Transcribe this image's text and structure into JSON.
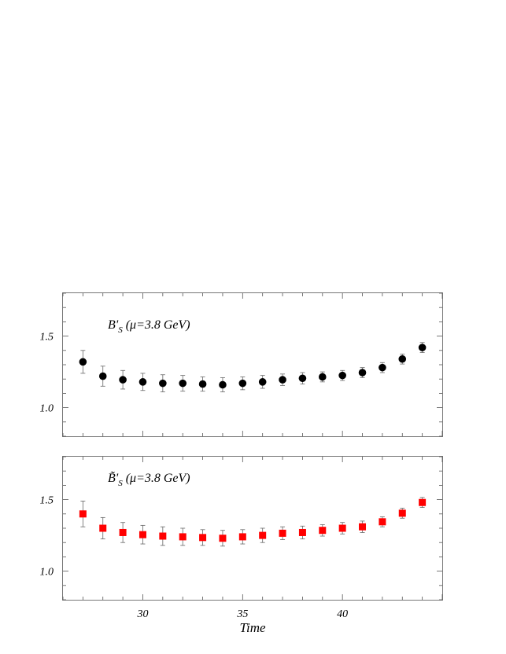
{
  "chart_data": [
    {
      "type": "scatter",
      "label_main": "B",
      "label_prime": "'",
      "label_sub": "S",
      "label_suffix": " (μ=3.8 GeV)",
      "marker": "circle",
      "color": "#000000",
      "xlim": [
        26,
        45
      ],
      "ylim": [
        0.8,
        1.8
      ],
      "yticks": [
        "1.0",
        "1.5"
      ],
      "ytick_values": [
        1.0,
        1.5
      ],
      "x": [
        27,
        28,
        29,
        30,
        31,
        32,
        33,
        34,
        35,
        36,
        37,
        38,
        39,
        40,
        41,
        42,
        43,
        44
      ],
      "y": [
        1.32,
        1.22,
        1.195,
        1.18,
        1.17,
        1.17,
        1.165,
        1.16,
        1.17,
        1.18,
        1.195,
        1.205,
        1.215,
        1.225,
        1.245,
        1.28,
        1.34,
        1.42
      ],
      "yerr": [
        0.08,
        0.07,
        0.065,
        0.06,
        0.06,
        0.055,
        0.05,
        0.05,
        0.045,
        0.045,
        0.04,
        0.04,
        0.035,
        0.035,
        0.035,
        0.035,
        0.035,
        0.035
      ]
    },
    {
      "type": "scatter",
      "label_main": "B̃",
      "label_prime": "'",
      "label_sub": "S",
      "label_suffix": " (μ=3.8 GeV)",
      "marker": "square",
      "color": "#ff0000",
      "xlim": [
        26,
        45
      ],
      "ylim": [
        0.8,
        1.8
      ],
      "yticks": [
        "1.0",
        "1.5"
      ],
      "ytick_values": [
        1.0,
        1.5
      ],
      "xticks": [
        "30",
        "35",
        "40"
      ],
      "xtick_values": [
        30,
        35,
        40
      ],
      "xlabel": "Time",
      "x": [
        27,
        28,
        29,
        30,
        31,
        32,
        33,
        34,
        35,
        36,
        37,
        38,
        39,
        40,
        41,
        42,
        43,
        44
      ],
      "y": [
        1.4,
        1.3,
        1.27,
        1.255,
        1.245,
        1.24,
        1.235,
        1.23,
        1.24,
        1.25,
        1.265,
        1.27,
        1.285,
        1.3,
        1.31,
        1.345,
        1.405,
        1.48
      ],
      "yerr": [
        0.09,
        0.075,
        0.07,
        0.065,
        0.065,
        0.06,
        0.055,
        0.055,
        0.05,
        0.05,
        0.045,
        0.045,
        0.04,
        0.04,
        0.04,
        0.035,
        0.035,
        0.035
      ]
    }
  ]
}
